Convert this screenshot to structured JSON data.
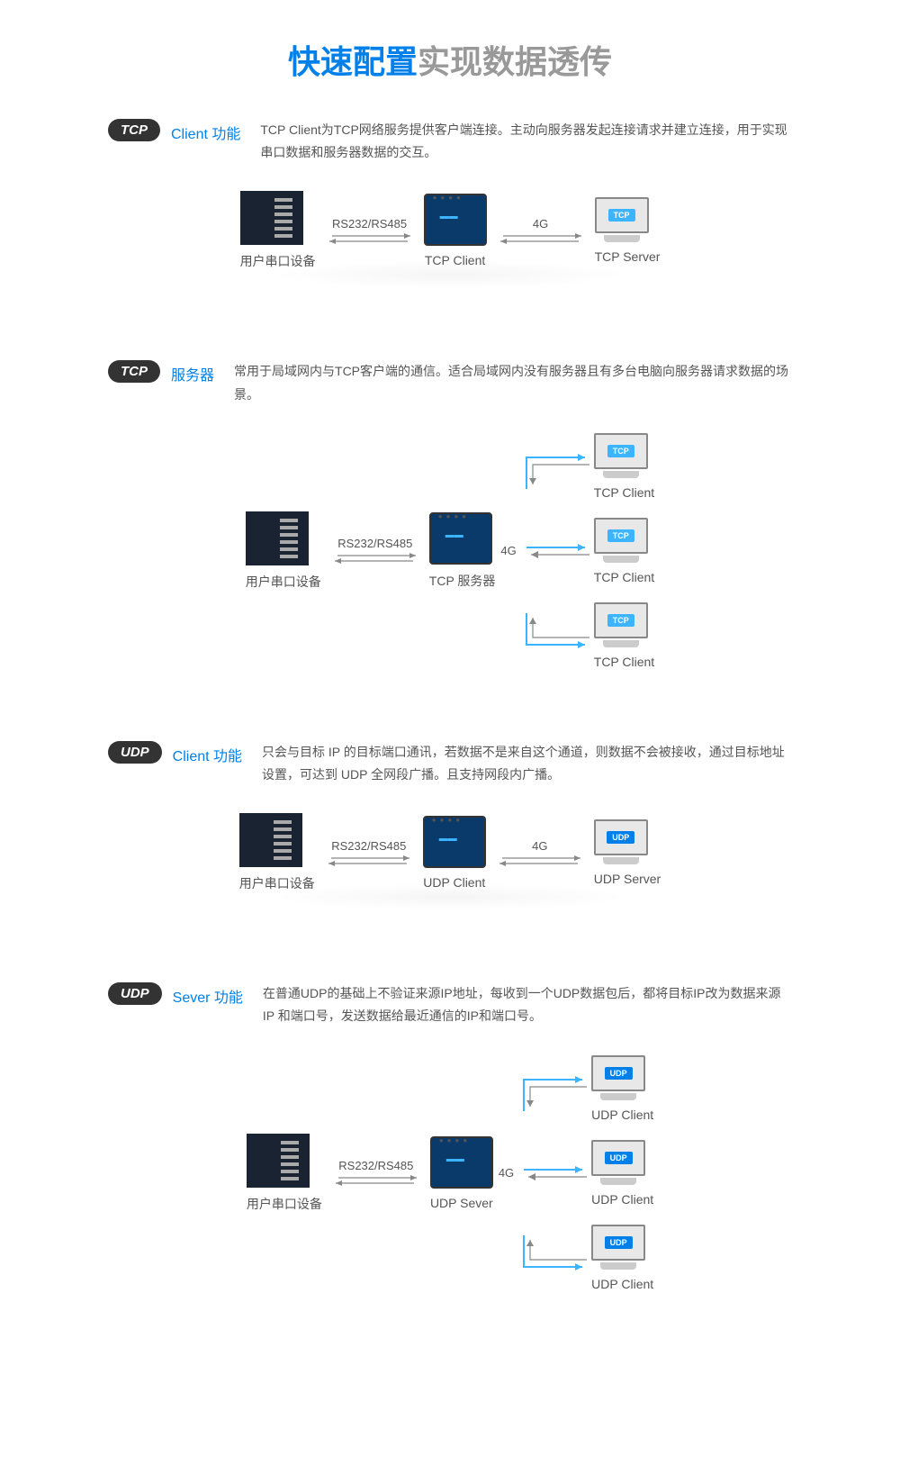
{
  "title": {
    "part1": "快速配置",
    "part2": "实现数据透传"
  },
  "colors": {
    "primary_blue": "#0080e8",
    "badge_bg": "#333333",
    "text_gray": "#555555",
    "light_gray": "#999999",
    "tcp_badge": "#3cb4ff",
    "udp_badge": "#0080e8",
    "arrow_color": "#888888",
    "branch_color": "#3cb4ff"
  },
  "sections": [
    {
      "badge": "TCP",
      "label": "Client 功能",
      "desc": "TCP Client为TCP网络服务提供客户端连接。主动向服务器发起连接请求并建立连接，用于实现串口数据和服务器数据的交互。",
      "type": "simple",
      "left_node": "用户串口设备",
      "mid_node": "TCP Client",
      "right_node": "TCP Server",
      "conn1": "RS232/RS485",
      "conn2": "4G",
      "right_badge": "TCP",
      "right_badge_color": "#3cb4ff"
    },
    {
      "badge": "TCP",
      "label": "服务器",
      "desc": "常用于局域网内与TCP客户端的通信。适合局域网内没有服务器且有多台电脑向服务器请求数据的场景。",
      "type": "complex",
      "left_node": "用户串口设备",
      "mid_node": "TCP 服务器",
      "conn1": "RS232/RS485",
      "conn2": "4G",
      "client_label": "TCP Client",
      "client_badge": "TCP",
      "client_badge_color": "#3cb4ff"
    },
    {
      "badge": "UDP",
      "label": "Client 功能",
      "desc": "只会与目标 IP 的目标端口通讯，若数据不是来自这个通道，则数据不会被接收，通过目标地址设置，可达到 UDP 全网段广播。且支持网段内广播。",
      "type": "simple",
      "left_node": "用户串口设备",
      "mid_node": "UDP Client",
      "right_node": "UDP Server",
      "conn1": "RS232/RS485",
      "conn2": "4G",
      "right_badge": "UDP",
      "right_badge_color": "#0080e8"
    },
    {
      "badge": "UDP",
      "label": "Sever 功能",
      "desc": "在普通UDP的基础上不验证来源IP地址，每收到一个UDP数据包后，都将目标IP改为数据来源IP 和端口号，发送数据给最近通信的IP和端口号。",
      "type": "complex",
      "left_node": "用户串口设备",
      "mid_node": "UDP Sever",
      "conn1": "RS232/RS485",
      "conn2": "4G",
      "client_label": "UDP Client",
      "client_badge": "UDP",
      "client_badge_color": "#0080e8"
    }
  ]
}
